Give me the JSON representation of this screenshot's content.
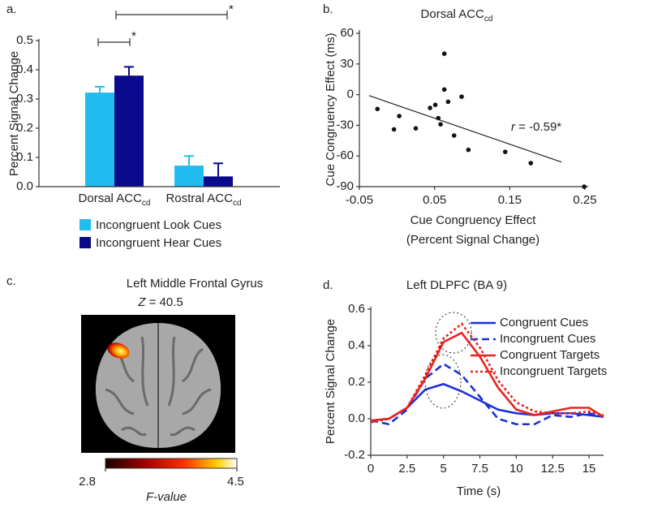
{
  "chart_data": [
    {
      "type": "bar",
      "panel": "a.",
      "ylabel": "Percent Signal Change",
      "categories": [
        "Dorsal ACC",
        "Rostral ACC"
      ],
      "category_subscripts": [
        "cd",
        "cd"
      ],
      "series": [
        {
          "name": "Incongruent Look Cues",
          "color": "#22bdf0",
          "values": [
            0.322,
            0.072
          ],
          "errors": [
            0.02,
            0.033
          ]
        },
        {
          "name": "Incongruent Hear Cues",
          "color": "#0a0a8c",
          "values": [
            0.38,
            0.035
          ],
          "errors": [
            0.03,
            0.045
          ]
        }
      ],
      "ylim": [
        0,
        0.5
      ],
      "yticks": [
        {
          "value": 0,
          "label": "0.0"
        },
        0.1,
        0.2,
        0.3,
        0.4,
        0.5
      ],
      "annotations": [
        "*",
        "*"
      ]
    },
    {
      "type": "scatter",
      "panel": "b.",
      "title": "Dorsal ACC",
      "title_subscript": "cd",
      "xlabel": [
        "Cue Congruency Effect",
        "(Percent Signal Change)"
      ],
      "ylabel": "Cue Congruency Effect (ms)",
      "x": [
        -0.026,
        -0.004,
        0.003,
        0.025,
        0.044,
        0.051,
        0.055,
        0.063,
        0.058,
        0.063,
        0.068,
        0.076,
        0.086,
        0.095,
        0.144,
        0.178,
        0.249
      ],
      "values": [
        -14,
        -34,
        -21,
        -33,
        -13,
        -10,
        -23,
        40,
        -29,
        5,
        -7,
        -40,
        -2,
        -54,
        -56,
        -67,
        -90
      ],
      "color": "#111111",
      "fit": {
        "x": [
          -0.037,
          0.219
        ],
        "y": [
          -1,
          -66
        ]
      },
      "annotation": {
        "variable": "r",
        "text": " = -0.59*"
      },
      "xlim": [
        -0.05,
        0.25
      ],
      "xticks": [
        -0.05,
        0.05,
        0.15,
        0.25
      ],
      "ylim": [
        -90,
        60
      ],
      "yticks": [
        -90,
        -60,
        -30,
        0,
        30,
        60
      ]
    },
    {
      "type": "image",
      "panel": "c.",
      "title": "Left Middle Frontal Gyrus",
      "subtitle": {
        "variable": "Z",
        "text": " = 40.5"
      },
      "colorbar": {
        "lim": [
          2.8,
          4.5
        ],
        "ticks": [
          2.8,
          4.5
        ],
        "label": "F-value"
      }
    },
    {
      "type": "line",
      "panel": "d.",
      "title": "Left DLPFC (BA 9)",
      "xlabel": "Time (s)",
      "ylabel": "Percent Signal Change",
      "x": [
        0,
        1.25,
        2.5,
        3.75,
        5,
        6.25,
        7.5,
        8.75,
        10,
        11.25,
        12.5,
        13.75,
        15,
        16
      ],
      "series": [
        {
          "name": "Congruent Cues",
          "color": "#1a2fd8",
          "dash": "solid",
          "values": [
            -0.01,
            0.0,
            0.06,
            0.16,
            0.19,
            0.15,
            0.1,
            0.05,
            0.03,
            0.02,
            0.03,
            0.03,
            0.02,
            0.01
          ]
        },
        {
          "name": "Incongruent Cues",
          "color": "#1a2fd8",
          "dash": "dashed",
          "values": [
            -0.01,
            -0.03,
            0.05,
            0.22,
            0.3,
            0.24,
            0.12,
            0.0,
            -0.03,
            -0.03,
            0.02,
            0.01,
            0.03,
            0.01
          ]
        },
        {
          "name": "Congruent Targets",
          "color": "#e8231f",
          "dash": "solid",
          "values": [
            -0.01,
            0.0,
            0.06,
            0.22,
            0.42,
            0.47,
            0.34,
            0.17,
            0.05,
            0.02,
            0.04,
            0.06,
            0.06,
            0.01
          ]
        },
        {
          "name": "Incongruent Targets",
          "color": "#e8231f",
          "dash": "dotted",
          "values": [
            -0.02,
            0.0,
            0.06,
            0.24,
            0.44,
            0.52,
            0.39,
            0.21,
            0.09,
            0.04,
            0.03,
            0.03,
            0.04,
            0.02
          ]
        }
      ],
      "xlim": [
        0,
        16
      ],
      "xticks": [
        0,
        2.5,
        5,
        7.5,
        10,
        12.5,
        15
      ],
      "ylim": [
        -0.2,
        0.6
      ],
      "yticks": [
        -0.2,
        {
          "value": 0,
          "label": "0.0"
        },
        0.2,
        0.4,
        0.6
      ]
    }
  ]
}
